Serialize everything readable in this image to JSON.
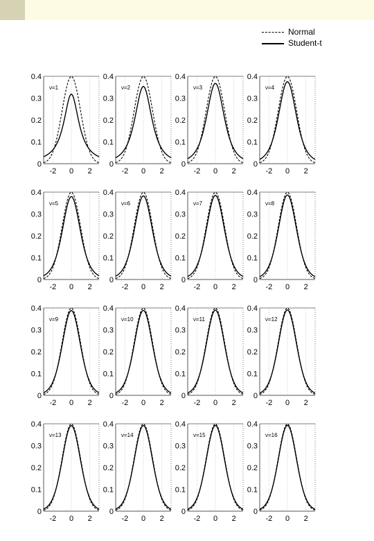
{
  "page": {
    "colors": {
      "top_bar": "#fdfbe3",
      "corner_swatch": "#d6d2b4",
      "ink": "#000000",
      "frame": "#555555",
      "grid": "#bbbbbb"
    }
  },
  "legend": {
    "placement": "top-right",
    "normal_label": "Normal",
    "student_label": "Student-t"
  },
  "chart_data": {
    "type": "line",
    "layout": "small-multiples 4x4",
    "title": "",
    "xlabel": "",
    "ylabel": "",
    "xlim": [
      -3,
      3
    ],
    "ylim": [
      0,
      0.4
    ],
    "xticks": [
      -2,
      0,
      2
    ],
    "xtick_labels": [
      "-2",
      "0",
      "2"
    ],
    "yticks": [
      0,
      0.1,
      0.2,
      0.3,
      0.4
    ],
    "ytick_labels": [
      "0",
      "0.1",
      "0.2",
      "0.3",
      "0.4"
    ],
    "grid": "dotted vertical at x ticks",
    "series_styles": [
      {
        "name": "Normal",
        "style": "dashed",
        "color": "#000000"
      },
      {
        "name": "Student-t",
        "style": "solid",
        "color": "#000000"
      }
    ],
    "panels": [
      {
        "label": "ν=1",
        "nu": 1
      },
      {
        "label": "ν=2",
        "nu": 2
      },
      {
        "label": "ν=3",
        "nu": 3
      },
      {
        "label": "ν=4",
        "nu": 4
      },
      {
        "label": "ν=5",
        "nu": 5
      },
      {
        "label": "ν=6",
        "nu": 6
      },
      {
        "label": "ν=7",
        "nu": 7
      },
      {
        "label": "ν=8",
        "nu": 8
      },
      {
        "label": "ν=9",
        "nu": 9
      },
      {
        "label": "ν=10",
        "nu": 10
      },
      {
        "label": "ν=11",
        "nu": 11
      },
      {
        "label": "ν=12",
        "nu": 12
      },
      {
        "label": "ν=13",
        "nu": 13
      },
      {
        "label": "ν=14",
        "nu": 14
      },
      {
        "label": "ν=15",
        "nu": 15
      },
      {
        "label": "ν=16",
        "nu": 16
      }
    ]
  }
}
